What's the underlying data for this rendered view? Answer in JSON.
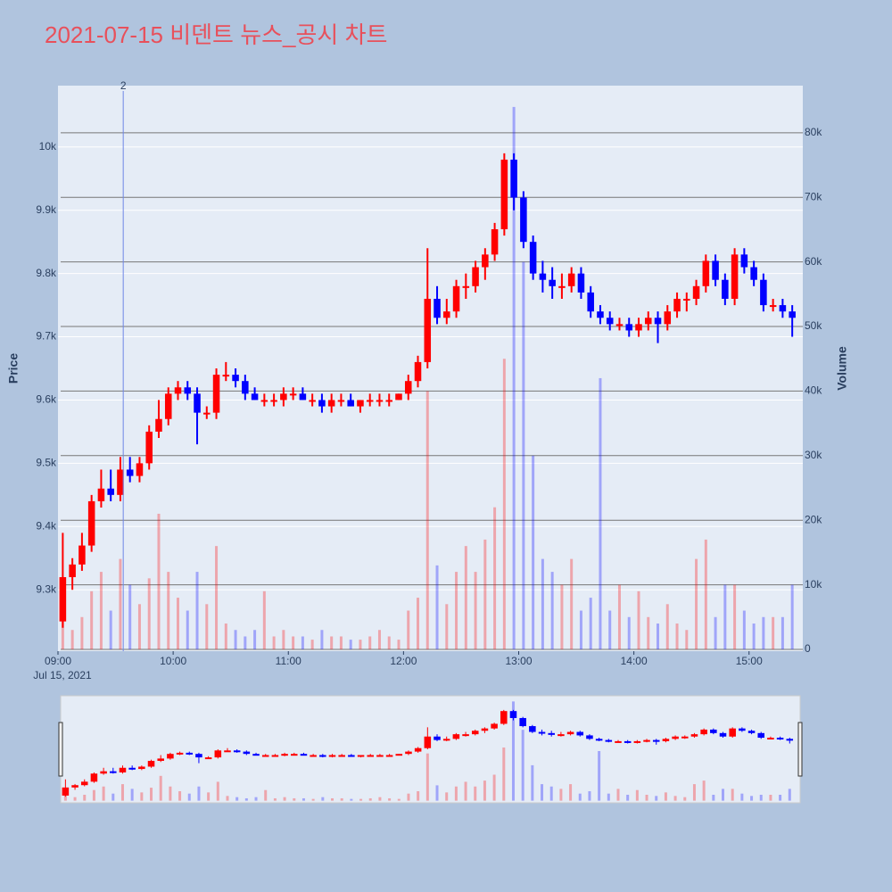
{
  "chart_data": {
    "type": "candlestick",
    "title": "2021-07-15 비덴트 뉴스_공시 차트",
    "x": [
      "09:00",
      "09:05",
      "09:10",
      "09:15",
      "09:20",
      "09:25",
      "09:30",
      "09:35",
      "09:40",
      "09:45",
      "09:50",
      "09:55",
      "10:00",
      "10:05",
      "10:10",
      "10:15",
      "10:20",
      "10:25",
      "10:30",
      "10:35",
      "10:40",
      "10:45",
      "10:50",
      "10:55",
      "11:00",
      "11:05",
      "11:10",
      "11:15",
      "11:20",
      "11:25",
      "11:30",
      "11:35",
      "11:40",
      "11:45",
      "11:50",
      "11:55",
      "12:00",
      "12:05",
      "12:10",
      "12:15",
      "12:20",
      "12:25",
      "12:30",
      "12:35",
      "12:40",
      "12:45",
      "12:50",
      "12:55",
      "13:00",
      "13:05",
      "13:10",
      "13:15",
      "13:20",
      "13:25",
      "13:30",
      "13:35",
      "13:40",
      "13:45",
      "13:50",
      "13:55",
      "14:00",
      "14:05",
      "14:10",
      "14:15",
      "14:20",
      "14:25",
      "14:30",
      "14:35",
      "14:40",
      "14:45",
      "14:50",
      "14:55",
      "15:00",
      "15:05",
      "15:10",
      "15:15",
      "15:20"
    ],
    "open": [
      9250,
      9320,
      9340,
      9370,
      9440,
      9460,
      9450,
      9490,
      9480,
      9500,
      9550,
      9570,
      9610,
      9620,
      9610,
      9580,
      9580,
      9640,
      9640,
      9630,
      9610,
      9600,
      9600,
      9600,
      9610,
      9610,
      9600,
      9600,
      9590,
      9600,
      9600,
      9590,
      9600,
      9600,
      9600,
      9600,
      9610,
      9630,
      9660,
      9760,
      9730,
      9740,
      9780,
      9780,
      9810,
      9830,
      9870,
      9980,
      9920,
      9850,
      9800,
      9790,
      9780,
      9780,
      9800,
      9770,
      9740,
      9730,
      9720,
      9720,
      9710,
      9720,
      9730,
      9720,
      9740,
      9760,
      9760,
      9780,
      9820,
      9790,
      9760,
      9830,
      9810,
      9790,
      9750,
      9750,
      9740
    ],
    "high": [
      9390,
      9350,
      9390,
      9450,
      9490,
      9490,
      9510,
      9510,
      9510,
      9560,
      9600,
      9620,
      9630,
      9630,
      9620,
      9590,
      9650,
      9660,
      9650,
      9640,
      9620,
      9610,
      9610,
      9620,
      9620,
      9620,
      9610,
      9610,
      9610,
      9610,
      9610,
      9600,
      9610,
      9610,
      9610,
      9610,
      9640,
      9670,
      9840,
      9780,
      9760,
      9790,
      9800,
      9820,
      9840,
      9880,
      9990,
      9990,
      9930,
      9860,
      9820,
      9810,
      9800,
      9810,
      9810,
      9780,
      9750,
      9740,
      9730,
      9730,
      9730,
      9740,
      9740,
      9750,
      9770,
      9770,
      9790,
      9830,
      9830,
      9800,
      9840,
      9840,
      9820,
      9800,
      9760,
      9760,
      9750
    ],
    "low": [
      9240,
      9300,
      9330,
      9360,
      9430,
      9440,
      9440,
      9470,
      9470,
      9490,
      9540,
      9560,
      9600,
      9600,
      9530,
      9570,
      9570,
      9630,
      9620,
      9600,
      9600,
      9590,
      9590,
      9590,
      9600,
      9600,
      9590,
      9580,
      9580,
      9590,
      9590,
      9580,
      9590,
      9590,
      9590,
      9600,
      9600,
      9620,
      9650,
      9720,
      9720,
      9730,
      9760,
      9770,
      9790,
      9820,
      9860,
      9900,
      9840,
      9790,
      9770,
      9760,
      9760,
      9770,
      9760,
      9730,
      9720,
      9710,
      9710,
      9700,
      9700,
      9710,
      9690,
      9710,
      9730,
      9740,
      9750,
      9770,
      9780,
      9750,
      9750,
      9800,
      9780,
      9740,
      9740,
      9730,
      9700
    ],
    "close": [
      9320,
      9340,
      9370,
      9440,
      9460,
      9450,
      9490,
      9480,
      9500,
      9550,
      9570,
      9610,
      9620,
      9610,
      9580,
      9580,
      9640,
      9640,
      9630,
      9610,
      9600,
      9600,
      9600,
      9610,
      9610,
      9600,
      9600,
      9590,
      9600,
      9600,
      9590,
      9600,
      9600,
      9600,
      9600,
      9610,
      9630,
      9660,
      9760,
      9730,
      9740,
      9780,
      9780,
      9810,
      9830,
      9870,
      9980,
      9920,
      9850,
      9800,
      9790,
      9780,
      9780,
      9800,
      9770,
      9740,
      9730,
      9720,
      9720,
      9710,
      9720,
      9730,
      9720,
      9740,
      9760,
      9760,
      9780,
      9820,
      9790,
      9760,
      9830,
      9810,
      9790,
      9750,
      9750,
      9740,
      9730
    ],
    "volume": [
      8000,
      3000,
      5000,
      9000,
      12000,
      6000,
      14000,
      10000,
      7000,
      11000,
      21000,
      12000,
      8000,
      6000,
      12000,
      7000,
      16000,
      4000,
      3000,
      2000,
      3000,
      9000,
      2000,
      3000,
      2000,
      2000,
      1500,
      3000,
      2000,
      2000,
      1500,
      1500,
      2000,
      3000,
      2000,
      1500,
      6000,
      8000,
      40000,
      13000,
      7000,
      12000,
      16000,
      12000,
      17000,
      22000,
      45000,
      84000,
      60000,
      30000,
      14000,
      12000,
      10000,
      14000,
      6000,
      8000,
      42000,
      6000,
      10000,
      5000,
      9000,
      5000,
      4000,
      7000,
      4000,
      3000,
      14000,
      17000,
      5000,
      10000,
      10000,
      6000,
      4000,
      5000,
      5000,
      5000,
      10000
    ],
    "increasing_color": "#ff0000",
    "decreasing_color": "#0000ff",
    "xlim": [
      "09:00",
      "15:28"
    ],
    "xticks": [
      "09:00",
      "10:00",
      "11:00",
      "12:00",
      "13:00",
      "14:00",
      "15:00"
    ],
    "x_date_label": "Jul 15, 2021",
    "ylim": [
      9203,
      10097
    ],
    "yticks": [
      {
        "value": 9300,
        "label": "9.3k"
      },
      {
        "value": 9400,
        "label": "9.4k"
      },
      {
        "value": 9500,
        "label": "9.5k"
      },
      {
        "value": 9600,
        "label": "9.6k"
      },
      {
        "value": 9700,
        "label": "9.7k"
      },
      {
        "value": 9800,
        "label": "9.8k"
      },
      {
        "value": 9900,
        "label": "9.9k"
      },
      {
        "value": 10000,
        "label": "10k"
      }
    ],
    "y2lim": [
      -280,
      87300
    ],
    "y2ticks": [
      0,
      {
        "value": 10000,
        "label": "10k"
      },
      {
        "value": 20000,
        "label": "20k"
      },
      {
        "value": 30000,
        "label": "30k"
      },
      {
        "value": 40000,
        "label": "40k"
      },
      {
        "value": 50000,
        "label": "50k"
      },
      {
        "value": 60000,
        "label": "60k"
      },
      {
        "value": 70000,
        "label": "70k"
      },
      {
        "value": 80000,
        "label": "80k"
      }
    ],
    "ylabel": "Price",
    "y2label": "Volume",
    "annotations": [
      {
        "x": "09:34",
        "text": "2"
      }
    ],
    "rangeslider": true
  }
}
